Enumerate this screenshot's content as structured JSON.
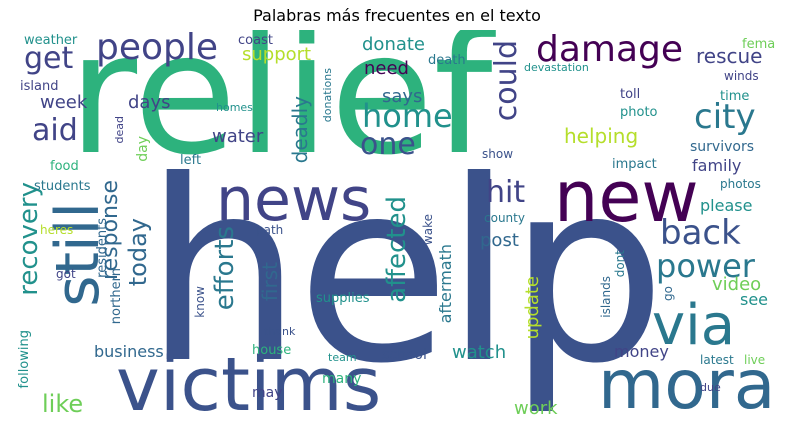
{
  "title": "Palabras más frecuentes en el texto",
  "palette": {
    "purple": "#440154",
    "indigo": "#3b528b",
    "slate": "#414487",
    "teal": "#2a788e",
    "blue": "#31688e",
    "sea": "#21918c",
    "green": "#2db27d",
    "lime": "#6ece58",
    "yellow": "#b5de2b"
  },
  "words": [
    {
      "t": "relief",
      "c": "green"
    },
    {
      "t": "help",
      "c": "indigo"
    },
    {
      "t": "victims",
      "c": "indigo"
    },
    {
      "t": "news",
      "c": "slate"
    },
    {
      "t": "new",
      "c": "purple"
    },
    {
      "t": "mora",
      "c": "blue"
    },
    {
      "t": "via",
      "c": "teal"
    },
    {
      "t": "still",
      "c": "blue"
    },
    {
      "t": "damage",
      "c": "purple"
    },
    {
      "t": "people",
      "c": "slate"
    },
    {
      "t": "city",
      "c": "teal"
    },
    {
      "t": "home",
      "c": "sea"
    },
    {
      "t": "back",
      "c": "indigo"
    },
    {
      "t": "power",
      "c": "teal"
    },
    {
      "t": "aid",
      "c": "slate"
    },
    {
      "t": "one",
      "c": "indigo"
    },
    {
      "t": "could",
      "c": "slate"
    },
    {
      "t": "get",
      "c": "slate"
    },
    {
      "t": "hit",
      "c": "slate"
    },
    {
      "t": "recovery",
      "c": "sea"
    },
    {
      "t": "efforts",
      "c": "teal"
    },
    {
      "t": "affected",
      "c": "sea"
    },
    {
      "t": "today",
      "c": "blue"
    },
    {
      "t": "response",
      "c": "blue"
    },
    {
      "t": "like",
      "c": "lime"
    },
    {
      "t": "rescue",
      "c": "slate"
    },
    {
      "t": "donate",
      "c": "sea"
    },
    {
      "t": "support",
      "c": "yellow"
    },
    {
      "t": "need",
      "c": "purple"
    },
    {
      "t": "says",
      "c": "blue"
    },
    {
      "t": "week",
      "c": "slate"
    },
    {
      "t": "days",
      "c": "slate"
    },
    {
      "t": "water",
      "c": "slate"
    },
    {
      "t": "deadly",
      "c": "teal"
    },
    {
      "t": "helping",
      "c": "yellow"
    },
    {
      "t": "family",
      "c": "slate"
    },
    {
      "t": "survivors",
      "c": "blue"
    },
    {
      "t": "please",
      "c": "sea"
    },
    {
      "t": "video",
      "c": "lime"
    },
    {
      "t": "see",
      "c": "sea"
    },
    {
      "t": "post",
      "c": "blue"
    },
    {
      "t": "watch",
      "c": "sea"
    },
    {
      "t": "business",
      "c": "blue"
    },
    {
      "t": "first",
      "c": "blue"
    },
    {
      "t": "aftermath",
      "c": "teal"
    },
    {
      "t": "update",
      "c": "yellow"
    },
    {
      "t": "money",
      "c": "slate"
    },
    {
      "t": "work",
      "c": "lime"
    },
    {
      "t": "weather",
      "c": "sea"
    },
    {
      "t": "coast",
      "c": "slate"
    },
    {
      "t": "fema",
      "c": "lime"
    },
    {
      "t": "death",
      "c": "teal"
    },
    {
      "t": "devastation",
      "c": "sea"
    },
    {
      "t": "winds",
      "c": "slate"
    },
    {
      "t": "island",
      "c": "slate"
    },
    {
      "t": "time",
      "c": "sea"
    },
    {
      "t": "toll",
      "c": "slate"
    },
    {
      "t": "photo",
      "c": "sea"
    },
    {
      "t": "homes",
      "c": "sea"
    },
    {
      "t": "donations",
      "c": "teal"
    },
    {
      "t": "dead",
      "c": "slate"
    },
    {
      "t": "day",
      "c": "lime"
    },
    {
      "t": "left",
      "c": "teal"
    },
    {
      "t": "food",
      "c": "green"
    },
    {
      "t": "students",
      "c": "teal"
    },
    {
      "t": "impact",
      "c": "teal"
    },
    {
      "t": "show",
      "c": "indigo"
    },
    {
      "t": "photos",
      "c": "teal"
    },
    {
      "t": "county",
      "c": "teal"
    },
    {
      "t": "heres",
      "c": "yellow"
    },
    {
      "t": "residents",
      "c": "blue"
    },
    {
      "t": "path",
      "c": "indigo"
    },
    {
      "t": "wake",
      "c": "indigo"
    },
    {
      "t": "dont",
      "c": "teal"
    },
    {
      "t": "got",
      "c": "slate"
    },
    {
      "t": "northern",
      "c": "blue"
    },
    {
      "t": "know",
      "c": "indigo"
    },
    {
      "t": "supplies",
      "c": "sea"
    },
    {
      "t": "islands",
      "c": "blue"
    },
    {
      "t": "go",
      "c": "blue"
    },
    {
      "t": "thank",
      "c": "indigo"
    },
    {
      "t": "house",
      "c": "green"
    },
    {
      "t": "team",
      "c": "sea"
    },
    {
      "t": "school",
      "c": "indigo"
    },
    {
      "t": "latest",
      "c": "teal"
    },
    {
      "t": "live",
      "c": "lime"
    },
    {
      "t": "following",
      "c": "sea"
    },
    {
      "t": "many",
      "c": "green"
    },
    {
      "t": "may",
      "c": "slate"
    },
    {
      "t": "due",
      "c": "slate"
    }
  ]
}
